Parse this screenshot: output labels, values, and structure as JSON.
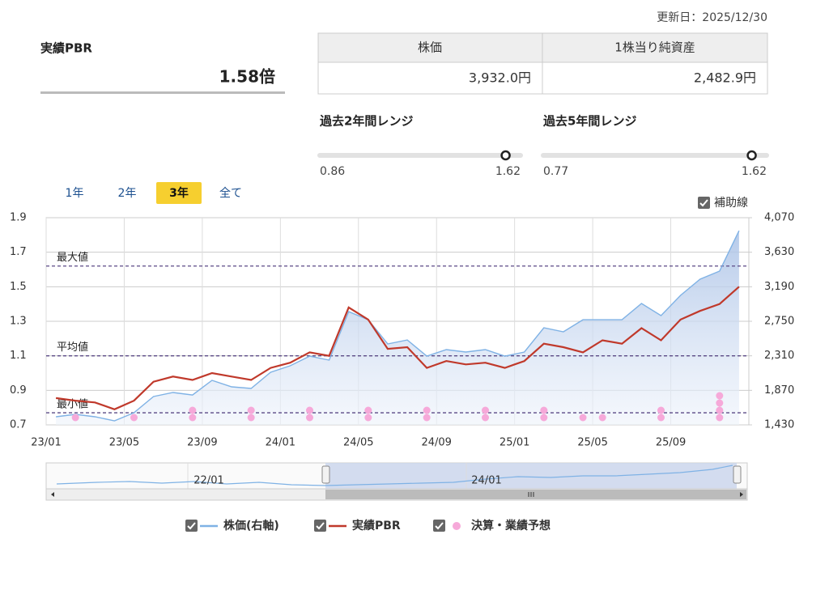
{
  "updated": "更新日：2025/12/30",
  "pbr": {
    "title": "実績PBR",
    "value": {
      "value": 1.58,
      "label": "1.58倍"
    }
  },
  "table": {
    "headers": [
      "株価",
      "1株当り純資産"
    ],
    "values": [
      "3,932.0円",
      "2,482.9円"
    ]
  },
  "ranges": [
    {
      "title": "過去2年間レンジ",
      "min": 0.86,
      "max": 1.62
    },
    {
      "title": "過去5年間レンジ",
      "min": 0.77,
      "max": 1.62
    }
  ],
  "periods": [
    "1年",
    "2年",
    "3年",
    "全て"
  ],
  "active_period": 2,
  "guide_toggle": "補助線",
  "chart_data": {
    "type": "line",
    "x": [
      "23/01",
      "23/02",
      "23/03",
      "23/04",
      "23/05",
      "23/06",
      "23/07",
      "23/08",
      "23/09",
      "23/10",
      "23/11",
      "23/12",
      "24/01",
      "24/02",
      "24/03",
      "24/04",
      "24/05",
      "24/06",
      "24/07",
      "24/08",
      "24/09",
      "24/10",
      "24/11",
      "24/12",
      "25/01",
      "25/02",
      "25/03",
      "25/04",
      "25/05",
      "25/06",
      "25/07",
      "25/08",
      "25/09",
      "25/10",
      "25/11",
      "25/12"
    ],
    "xticks": [
      "23/01",
      "23/05",
      "23/09",
      "24/01",
      "24/05",
      "24/09",
      "25/01",
      "25/05",
      "25/09"
    ],
    "ylim": [
      0.7,
      1.9
    ],
    "yticks": [
      0.7,
      0.9,
      1.1,
      1.3,
      1.5,
      1.7,
      1.9
    ],
    "y2lim": [
      1430,
      4070
    ],
    "y2ticks": [
      {
        "value": 1430,
        "label": "1,430"
      },
      {
        "value": 1870,
        "label": "1,870"
      },
      {
        "value": 2310,
        "label": "2,310"
      },
      {
        "value": 2750,
        "label": "2,750"
      },
      {
        "value": 3190,
        "label": "3,190"
      },
      {
        "value": 3630,
        "label": "3,630"
      },
      {
        "value": 4070,
        "label": "4,070"
      }
    ],
    "grid": true,
    "series": [
      {
        "name": "株価(右軸)",
        "color": "#7fb2e5",
        "axis": "y2",
        "values": [
          1533,
          1564,
          1533,
          1482,
          1585,
          1791,
          1842,
          1811,
          1997,
          1915,
          1894,
          2100,
          2183,
          2306,
          2255,
          2873,
          2770,
          2461,
          2512,
          2306,
          2389,
          2358,
          2389,
          2306,
          2358,
          2667,
          2616,
          2770,
          2770,
          2770,
          2977,
          2822,
          3080,
          3286,
          3389,
          3904
        ]
      },
      {
        "name": "実績PBR",
        "color": "#c0392b",
        "values": [
          0.855,
          0.84,
          0.83,
          0.79,
          0.84,
          0.95,
          0.98,
          0.96,
          1.0,
          0.98,
          0.96,
          1.03,
          1.06,
          1.12,
          1.1,
          1.38,
          1.31,
          1.14,
          1.15,
          1.03,
          1.07,
          1.05,
          1.06,
          1.03,
          1.07,
          1.17,
          1.15,
          1.12,
          1.19,
          1.17,
          1.26,
          1.19,
          1.31,
          1.36,
          1.4,
          1.5
        ]
      }
    ],
    "reference_lines": [
      {
        "label": "最大値",
        "value": 1.62
      },
      {
        "label": "平均値",
        "value": 1.1
      },
      {
        "label": "最小値",
        "value": 0.77
      }
    ],
    "events": {
      "name": "決算・業績予想",
      "color": "#f6a9d9",
      "x": [
        "23/02",
        "23/05",
        "23/08",
        "23/11",
        "24/02",
        "24/05",
        "24/08",
        "24/11",
        "25/02",
        "25/04",
        "25/05",
        "25/08",
        "25/11"
      ],
      "counts": [
        1,
        1,
        2,
        2,
        2,
        2,
        2,
        2,
        2,
        1,
        1,
        2,
        4
      ]
    }
  },
  "navigator": {
    "labels": [
      "22/01",
      "24/01"
    ]
  }
}
